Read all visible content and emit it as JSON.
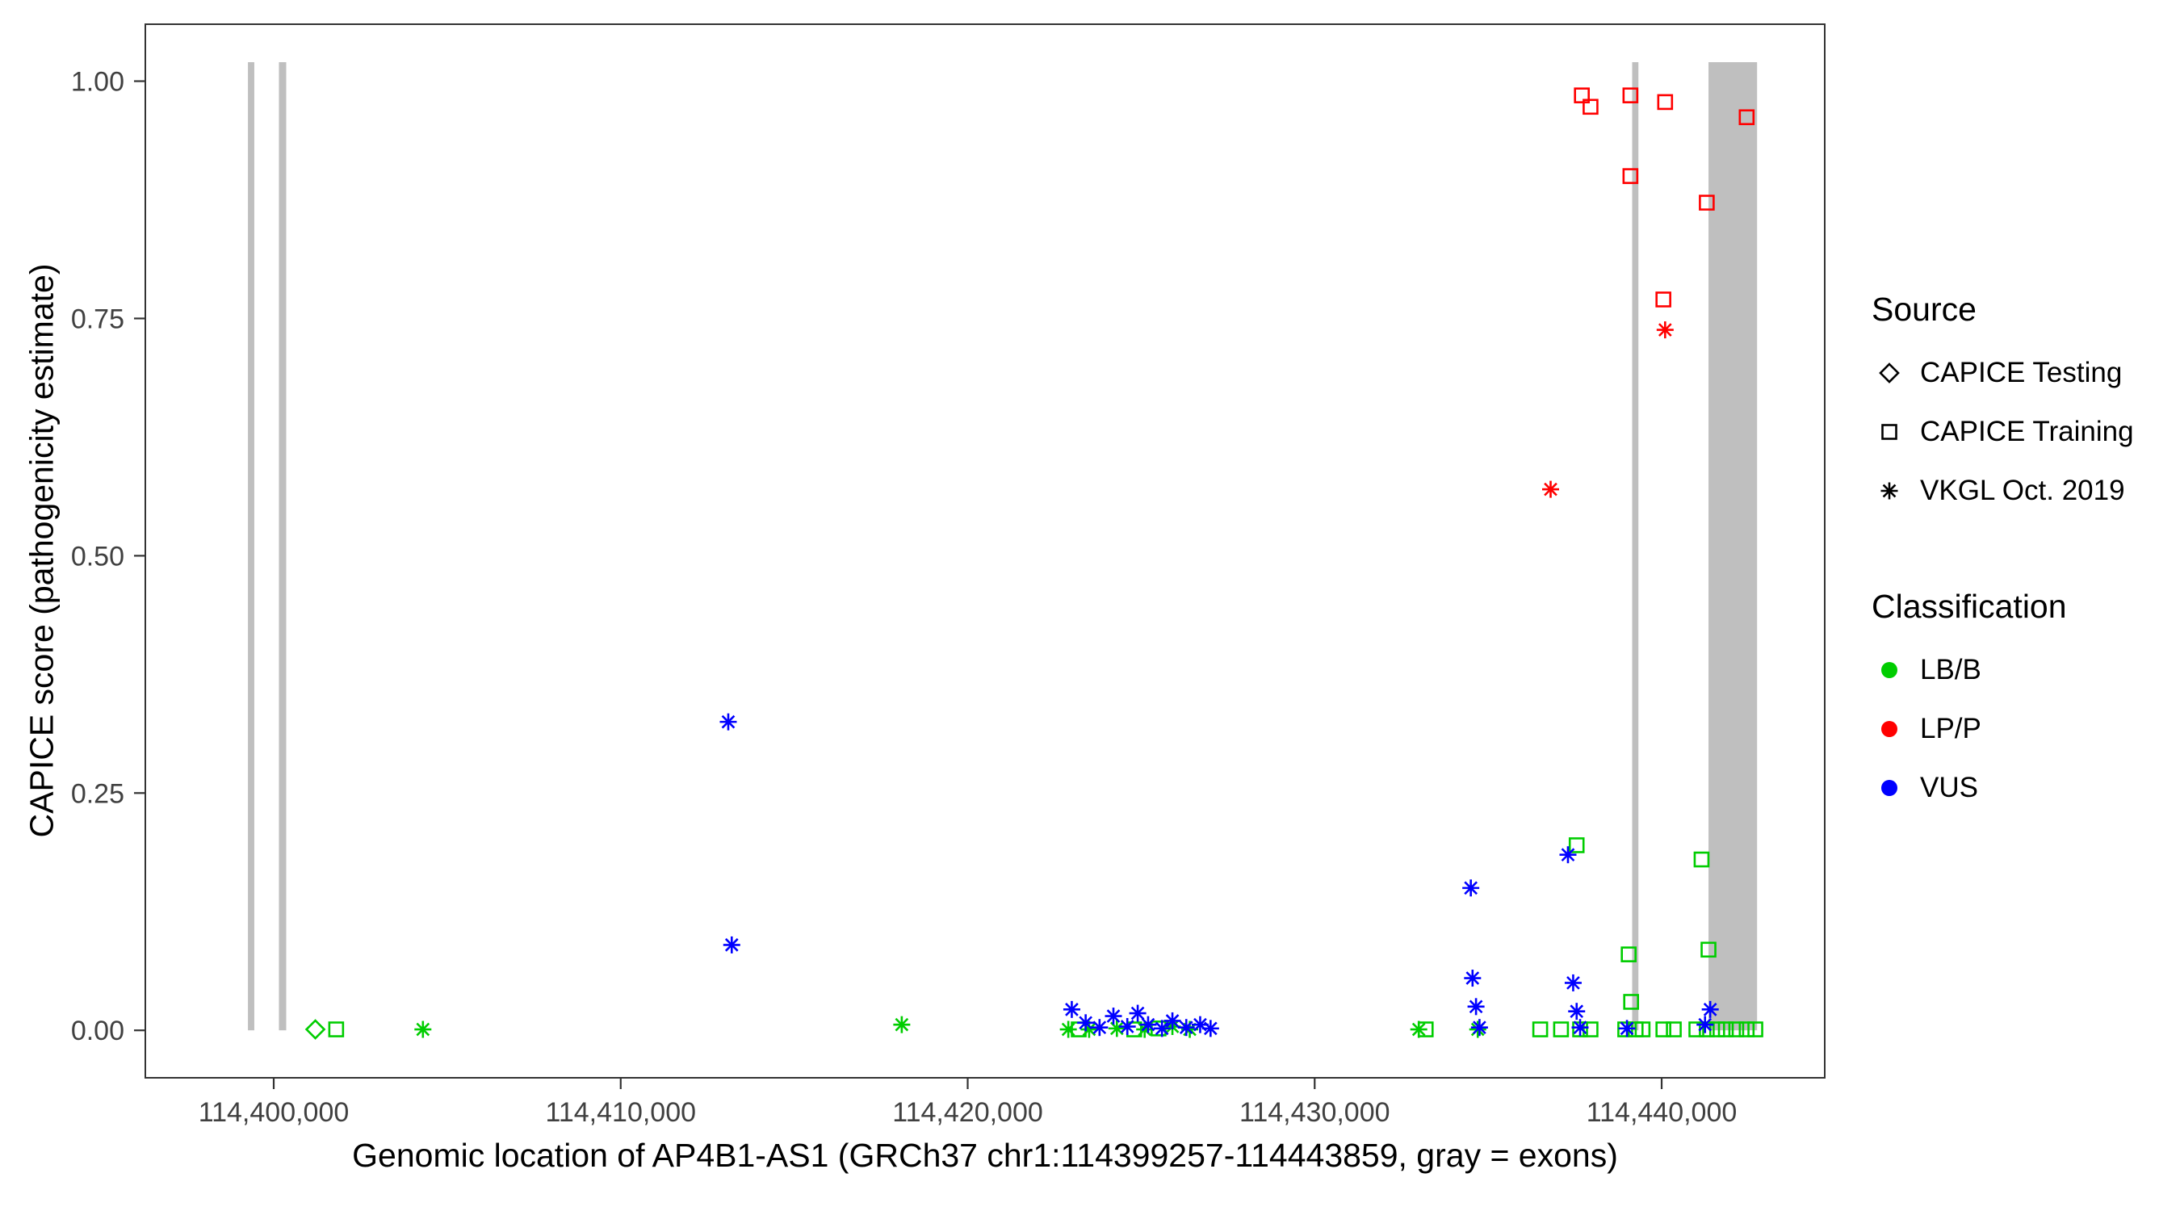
{
  "legend": {
    "source": {
      "title": "Source",
      "items": [
        {
          "label": "CAPICE Testing",
          "shape": "diamond"
        },
        {
          "label": "CAPICE Training",
          "shape": "square"
        },
        {
          "label": "VKGL Oct. 2019",
          "shape": "asterisk"
        }
      ]
    },
    "classification": {
      "title": "Classification",
      "items": [
        {
          "label": "LB/B",
          "color": "#00CD00"
        },
        {
          "label": "LP/P",
          "color": "#FF0000"
        },
        {
          "label": "VUS",
          "color": "#0000FF"
        }
      ]
    }
  },
  "chart_data": {
    "type": "scatter",
    "title": "",
    "xlabel": "Genomic location of AP4B1-AS1 (GRCh37 chr1:114399257-114443859, gray = exons)",
    "ylabel": "CAPICE score (pathogenicity estimate)",
    "x_domain": [
      114396300,
      114444700
    ],
    "y_domain": [
      -0.05,
      1.06
    ],
    "grid": false,
    "legend_position": "right",
    "x_ticks": [
      {
        "value": 114400000,
        "label": "114,400,000"
      },
      {
        "value": 114410000,
        "label": "114,410,000"
      },
      {
        "value": 114420000,
        "label": "114,420,000"
      },
      {
        "value": 114430000,
        "label": "114,430,000"
      },
      {
        "value": 114440000,
        "label": "114,440,000"
      }
    ],
    "y_ticks": [
      {
        "value": 0.0,
        "label": "0.00"
      },
      {
        "value": 0.25,
        "label": "0.25"
      },
      {
        "value": 0.5,
        "label": "0.50"
      },
      {
        "value": 0.75,
        "label": "0.75"
      },
      {
        "value": 1.0,
        "label": "1.00"
      }
    ],
    "exon_color": "#BFBFBF",
    "exons": [
      {
        "start": 114399257,
        "end": 114399440
      },
      {
        "start": 114400150,
        "end": 114400360
      },
      {
        "start": 114439150,
        "end": 114439330
      },
      {
        "start": 114441350,
        "end": 114442750
      }
    ],
    "colors": {
      "LB/B": "#00CD00",
      "LP/P": "#FF0000",
      "VUS": "#0000FF"
    },
    "series": [
      {
        "name": "CAPICE Testing / LB/B",
        "source": "CAPICE Testing",
        "classification": "LB/B",
        "shape": "diamond",
        "points": [
          [
            114401200,
            0.001
          ]
        ]
      },
      {
        "name": "CAPICE Training / LB/B",
        "source": "CAPICE Training",
        "classification": "LB/B",
        "shape": "square",
        "points": [
          [
            114401800,
            0.001
          ],
          [
            114423200,
            0.001
          ],
          [
            114424800,
            0.001
          ],
          [
            114425500,
            0.002
          ],
          [
            114433200,
            0.001
          ],
          [
            114436500,
            0.001
          ],
          [
            114437100,
            0.001
          ],
          [
            114437550,
            0.195
          ],
          [
            114437650,
            0.001
          ],
          [
            114437950,
            0.001
          ],
          [
            114438950,
            0.001
          ],
          [
            114439050,
            0.08
          ],
          [
            114439120,
            0.03
          ],
          [
            114439250,
            0.001
          ],
          [
            114439450,
            0.001
          ],
          [
            114440050,
            0.001
          ],
          [
            114440350,
            0.001
          ],
          [
            114441000,
            0.001
          ],
          [
            114441150,
            0.18
          ],
          [
            114441350,
            0.085
          ],
          [
            114441300,
            0.001
          ],
          [
            114441600,
            0.001
          ],
          [
            114441850,
            0.001
          ],
          [
            114442150,
            0.001
          ],
          [
            114442450,
            0.001
          ],
          [
            114442700,
            0.001
          ]
        ]
      },
      {
        "name": "CAPICE Training / LP/P",
        "source": "CAPICE Training",
        "classification": "LP/P",
        "shape": "square",
        "points": [
          [
            114437700,
            0.985
          ],
          [
            114437950,
            0.973
          ],
          [
            114439100,
            0.985
          ],
          [
            114439100,
            0.9
          ],
          [
            114440100,
            0.978
          ],
          [
            114440050,
            0.77
          ],
          [
            114441300,
            0.872
          ],
          [
            114442450,
            0.962
          ]
        ]
      },
      {
        "name": "VKGL Oct. 2019 / LB/B",
        "source": "VKGL Oct. 2019",
        "classification": "LB/B",
        "shape": "asterisk",
        "points": [
          [
            114404300,
            0.001
          ],
          [
            114418100,
            0.006
          ],
          [
            114422900,
            0.001
          ],
          [
            114423500,
            0.001
          ],
          [
            114424300,
            0.002
          ],
          [
            114425100,
            0.001
          ],
          [
            114425900,
            0.004
          ],
          [
            114426400,
            0.001
          ],
          [
            114433000,
            0.001
          ],
          [
            114434700,
            0.001
          ]
        ]
      },
      {
        "name": "VKGL Oct. 2019 / LP/P",
        "source": "VKGL Oct. 2019",
        "classification": "LP/P",
        "shape": "asterisk",
        "points": [
          [
            114436800,
            0.57
          ],
          [
            114440100,
            0.738
          ]
        ]
      },
      {
        "name": "VKGL Oct. 2019 / VUS",
        "source": "VKGL Oct. 2019",
        "classification": "VUS",
        "shape": "asterisk",
        "points": [
          [
            114413100,
            0.325
          ],
          [
            114413200,
            0.09
          ],
          [
            114423000,
            0.022
          ],
          [
            114423400,
            0.008
          ],
          [
            114423800,
            0.003
          ],
          [
            114424200,
            0.015
          ],
          [
            114424600,
            0.004
          ],
          [
            114424900,
            0.018
          ],
          [
            114425200,
            0.006
          ],
          [
            114425600,
            0.002
          ],
          [
            114425900,
            0.01
          ],
          [
            114426300,
            0.003
          ],
          [
            114426700,
            0.006
          ],
          [
            114427000,
            0.002
          ],
          [
            114434500,
            0.15
          ],
          [
            114434550,
            0.055
          ],
          [
            114434650,
            0.025
          ],
          [
            114434750,
            0.003
          ],
          [
            114437300,
            0.185
          ],
          [
            114437450,
            0.05
          ],
          [
            114437550,
            0.02
          ],
          [
            114437650,
            0.003
          ],
          [
            114439000,
            0.002
          ],
          [
            114441400,
            0.022
          ],
          [
            114441250,
            0.006
          ]
        ]
      }
    ]
  }
}
